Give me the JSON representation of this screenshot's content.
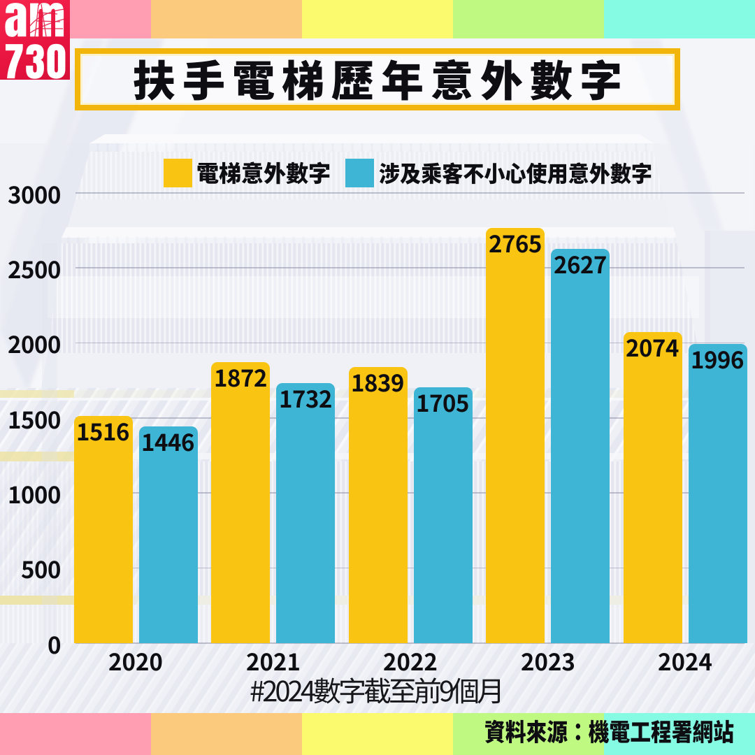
{
  "brand": {
    "name": "am730",
    "logo_line1": "am",
    "logo_line2": "730",
    "logo_color": "#E81540"
  },
  "header": {
    "title": "扶手電梯歷年意外數字",
    "frame_color": "#F2B50C"
  },
  "legend": {
    "items": [
      {
        "label": "電梯意外數字",
        "color": "#F9C412"
      },
      {
        "label": "涉及乘客不小心使用意外數字",
        "color": "#3EB5D4"
      }
    ]
  },
  "chart_data": {
    "type": "bar",
    "title": "扶手電梯歷年意外數字",
    "categories": [
      "2020",
      "2021",
      "2022",
      "2023",
      "2024"
    ],
    "series": [
      {
        "name": "電梯意外數字",
        "color": "#F9C412",
        "values": [
          1516,
          1872,
          1839,
          2765,
          2074
        ]
      },
      {
        "name": "涉及乘客不小心使用意外數字",
        "color": "#3EB5D4",
        "values": [
          1446,
          1732,
          1705,
          2627,
          1996
        ]
      }
    ],
    "yticks": [
      "3000",
      "2500",
      "2000",
      "1500",
      "1000",
      "500",
      "0"
    ],
    "ylim": [
      0,
      3000
    ],
    "grid": true,
    "legend_position": "top",
    "xlabel": "",
    "ylabel": ""
  },
  "footnote": {
    "text": "#2024數字截至前9個月"
  },
  "source": {
    "text": "資料來源：機電工程署網站"
  },
  "decor": {
    "strip_colors": [
      "#FF9DB3",
      "#FBCA7C",
      "#FBF96E",
      "#BFF981",
      "#85FBE3"
    ],
    "background": "escalator-steps-photo"
  }
}
